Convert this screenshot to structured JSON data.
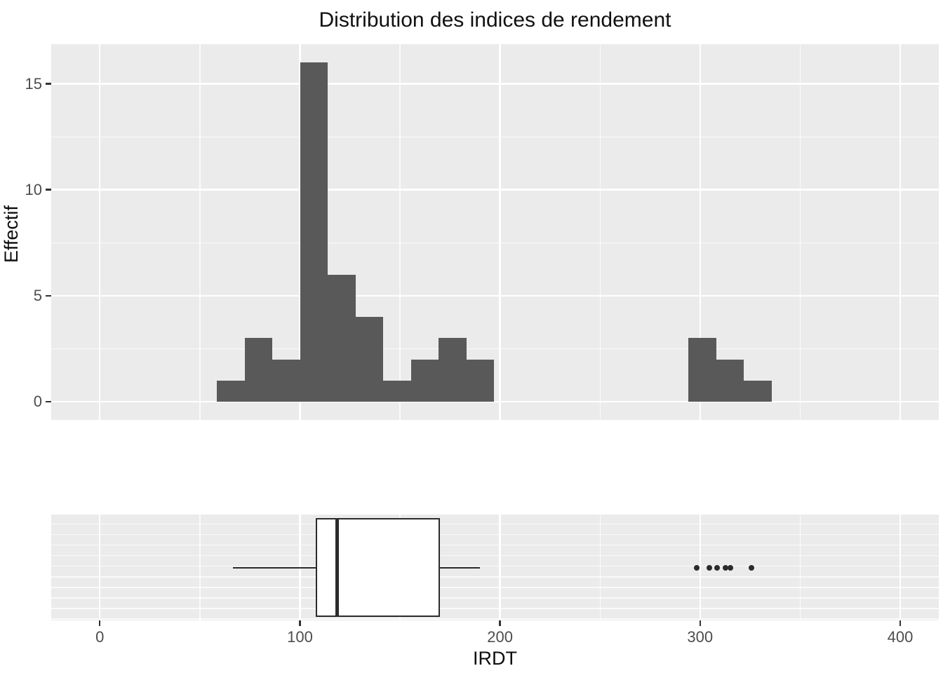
{
  "title": "Distribution des indices de rendement",
  "x_axis": {
    "label": "IRDT",
    "ticks": [
      0,
      100,
      200,
      300,
      400
    ],
    "minor_ticks": [
      50,
      150,
      250,
      350
    ],
    "range": [
      -24.3,
      419.3
    ]
  },
  "hist_y_axis": {
    "label": "Effectif",
    "ticks": [
      0,
      5,
      10,
      15
    ],
    "minor_ticks": [
      2.5,
      7.5,
      12.5
    ],
    "range": [
      -0.86,
      16.87
    ]
  },
  "colors": {
    "panel_background": "#EBEBEB",
    "gridline": "#FFFFFF",
    "bar_fill": "#595959",
    "box_stroke": "#2B2B2B",
    "tick_text": "#4D4D4D",
    "tick_mark": "#333333",
    "title_text": "#111111"
  },
  "chart_data": [
    {
      "type": "histogram",
      "title": "Distribution des indices de rendement",
      "xlabel": "IRDT",
      "ylabel": "Effectif",
      "bin_start": 58.6,
      "bin_width": 13.855,
      "counts": [
        1,
        3,
        2,
        16,
        6,
        4,
        1,
        2,
        3,
        2,
        0,
        0,
        0,
        0,
        0,
        0,
        0,
        3,
        2,
        1
      ],
      "xlim": [
        -24.3,
        419.3
      ],
      "ylim": [
        -0.86,
        16.87
      ],
      "x_major_gridlines": [
        0,
        100,
        200,
        300,
        400
      ],
      "x_minor_gridlines": [
        50,
        150,
        250,
        350
      ],
      "y_major_gridlines": [
        0,
        5,
        10,
        15
      ],
      "y_minor_gridlines": [
        2.5,
        7.5,
        12.5
      ],
      "legend": "none",
      "grid": true
    },
    {
      "type": "boxplot",
      "orientation": "horizontal",
      "xlabel": "IRDT",
      "whisker_min": 66.4,
      "q1": 107.9,
      "median": 118.7,
      "q3": 169.8,
      "whisker_max": 190.1,
      "outliers": [
        298.2,
        304.7,
        308.5,
        312.8,
        315.3,
        325.7
      ],
      "xlim": [
        -24.3,
        419.3
      ],
      "x_major_gridlines": [
        0,
        100,
        200,
        300,
        400
      ],
      "x_minor_gridlines": [
        50,
        150,
        250,
        350
      ],
      "horizontal_gridline_count": 10,
      "grid": true
    }
  ]
}
